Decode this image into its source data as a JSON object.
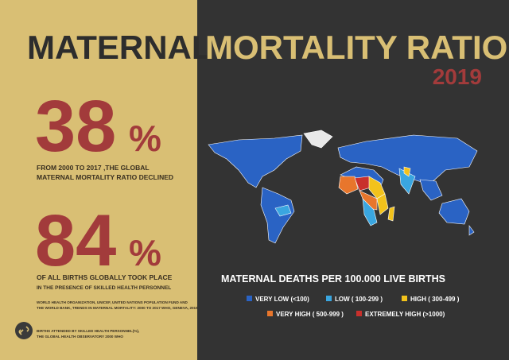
{
  "title": {
    "part1": "MATERNAL",
    "part2": "MORTALITY RATIO",
    "year": "2019"
  },
  "stats": [
    {
      "number": "38",
      "unit": "%",
      "lines": [
        "FROM  2000  TO  2017 ,THE GLOBAL",
        "MATERNAL MORTALITY RATIO DECLINED"
      ]
    },
    {
      "number": "84",
      "unit": "%",
      "lines": [
        "OF ALL BIRTHS GLOBALLY TOOK PLACE",
        "IN THE PRESENCE OF SKILLED HEALTH PERSONNEL"
      ]
    }
  ],
  "sources": [
    "WORLD HEALTH ORGANIZATION, UNICEF, UNITED NATIONS POPULATION FUND AND",
    "THE WORLD BANK, TRENDS IN MATERNAL MORTALITY: 2000 TO 2017 WHO, GENEVA, 2019",
    "BIRTHS ATTENDED BY SKILLED HEALTH PERSONNEL(%),",
    "THE GLOBAL HEALTH OBSERVATORY 2000 WHO"
  ],
  "legend": {
    "title": "MATERNAL DEATHS PER 100.000 LIVE BIRTHS",
    "items": [
      {
        "label": "VERY LOW (<100)",
        "color": "#2a63c4"
      },
      {
        "label": "LOW ( 100-299 )",
        "color": "#3aa6e0"
      },
      {
        "label": "HIGH ( 300-499 )",
        "color": "#f2c21b"
      },
      {
        "label": "VERY HIGH ( 500-999 )",
        "color": "#e8762c"
      },
      {
        "label": "EXTREMELY HIGH (>1000)",
        "color": "#c8302c"
      }
    ]
  }
}
